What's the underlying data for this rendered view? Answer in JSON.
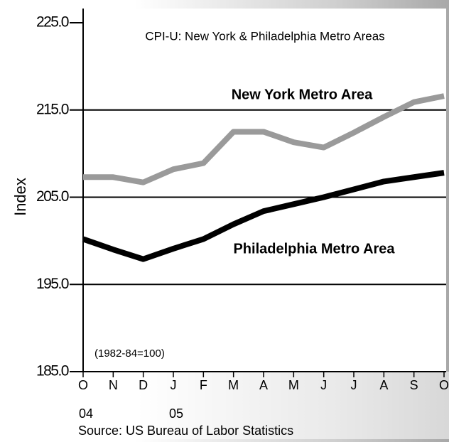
{
  "chart_data": {
    "type": "line",
    "title": "CPI-U: New York & Philadelphia Metro Areas",
    "y_label": "Index",
    "note": "(1982-84=100)",
    "source": "Source:  US Bureau of Labor Statistics",
    "categories": [
      "O",
      "N",
      "D",
      "J",
      "F",
      "M",
      "A",
      "M",
      "J",
      "J",
      "A",
      "S",
      "O"
    ],
    "x_sublabels": [
      "04",
      null,
      null,
      "05",
      null,
      null,
      null,
      null,
      null,
      null,
      null,
      null,
      null
    ],
    "series": [
      {
        "name": "New York Metro Area",
        "color": "#9a9a9a",
        "values": [
          207.3,
          207.3,
          206.7,
          208.2,
          208.9,
          212.5,
          212.5,
          211.3,
          210.7,
          212.4,
          214.2,
          215.9,
          216.6
        ]
      },
      {
        "name": "Philadelphia Metro Area",
        "color": "#000000",
        "values": [
          200.2,
          199.0,
          197.9,
          199.1,
          200.2,
          201.9,
          203.4,
          204.2,
          205.0,
          205.9,
          206.8,
          207.3,
          207.8
        ]
      }
    ],
    "ylim": [
      185,
      225
    ],
    "yticks": [
      {
        "value": 185,
        "label": "185.0"
      },
      {
        "value": 195,
        "label": "195.0"
      },
      {
        "value": 205,
        "label": "205.0"
      },
      {
        "value": 215,
        "label": "215.0"
      },
      {
        "value": 225,
        "label": "225.0"
      }
    ],
    "grid": true
  }
}
